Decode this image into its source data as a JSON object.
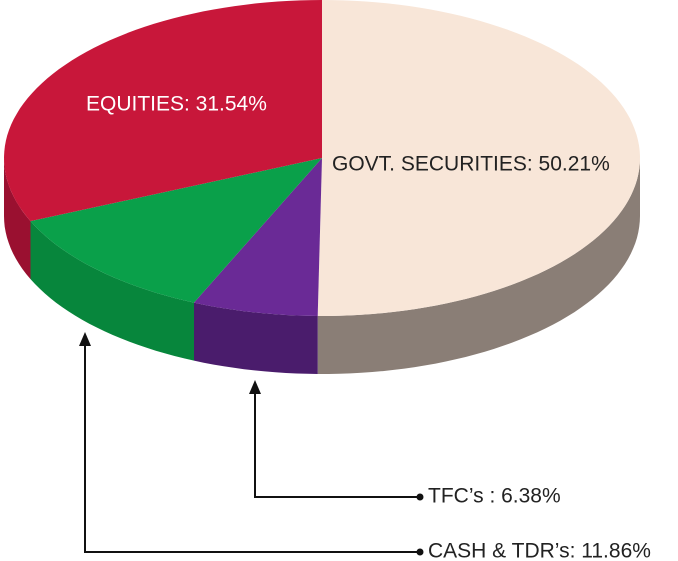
{
  "chart_data": {
    "type": "pie",
    "value_labels": [
      "GOVT. SECURITIES: 50.21%",
      "TFC’s : 6.38%",
      "CASH & TDR’s: 11.86%",
      "EQUITIES: 31.54%"
    ],
    "values": [
      50.21,
      6.38,
      11.86,
      31.54
    ],
    "colors": [
      "#f8e6d8",
      "#6a2a96",
      "#0aa04a",
      "#c8173a"
    ],
    "side_colors": [
      "#8a7e76",
      "#4a1c6c",
      "#07863c",
      "#9a1030"
    ]
  }
}
